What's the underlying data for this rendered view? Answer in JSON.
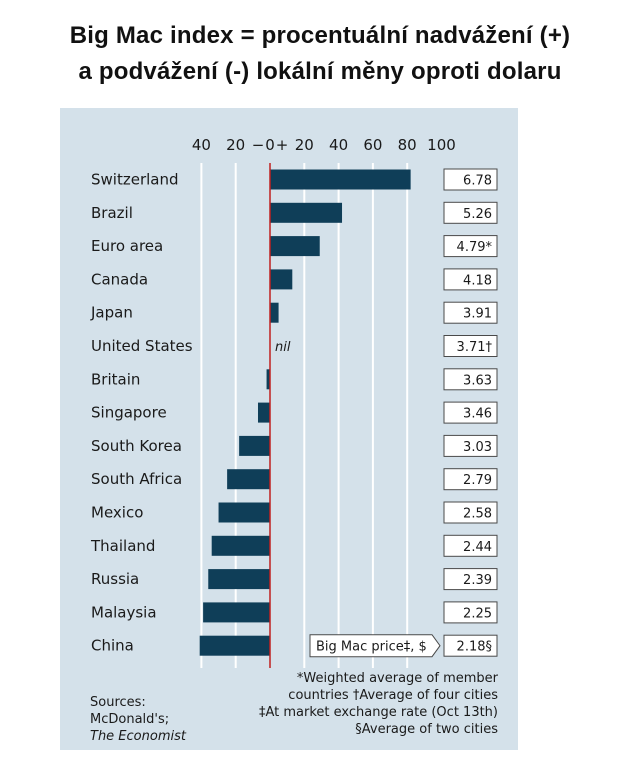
{
  "title_line1": "Big Mac index = procentuální nadvážení (+)",
  "title_line2": "a podvážení (-)  lokální měny oproti  dolaru",
  "chart_data": {
    "type": "bar",
    "orientation": "horizontal",
    "categories": [
      "Switzerland",
      "Brazil",
      "Euro area",
      "Canada",
      "Japan",
      "United States",
      "Britain",
      "Singapore",
      "South Korea",
      "South Africa",
      "Mexico",
      "Thailand",
      "Russia",
      "Malaysia",
      "China"
    ],
    "values": [
      82,
      42,
      29,
      13,
      5,
      0,
      -2,
      -7,
      -18,
      -25,
      -30,
      -34,
      -36,
      -39,
      -41
    ],
    "value_labels": [
      "6.78",
      "5.26",
      "4.79*",
      "4.18",
      "3.91",
      "3.71†",
      "3.63",
      "3.46",
      "3.03",
      "2.79",
      "2.58",
      "2.44",
      "2.39",
      "2.25",
      "2.18§"
    ],
    "nil_label": "nil",
    "nil_category": "United States",
    "xlim": [
      -45,
      103
    ],
    "xticks": [
      {
        "v": -40,
        "label": "40"
      },
      {
        "v": -20,
        "label": "20"
      },
      {
        "v": -7,
        "label": "−"
      },
      {
        "v": 0,
        "label": "0"
      },
      {
        "v": 7,
        "label": "+"
      },
      {
        "v": 20,
        "label": "20"
      },
      {
        "v": 40,
        "label": "40"
      },
      {
        "v": 60,
        "label": "60"
      },
      {
        "v": 80,
        "label": "80"
      },
      {
        "v": 100,
        "label": "100"
      }
    ],
    "gridlines": [
      -40,
      -20,
      20,
      40,
      60,
      80
    ],
    "price_callout": "Big Mac price‡, $",
    "grid": true
  },
  "colors": {
    "bar": "#0f3e58",
    "background": "#d4e1ea",
    "zero_line": "#c02020",
    "grid": "#ffffff"
  },
  "footer": {
    "sources": [
      "Sources:",
      "McDonald's;"
    ],
    "sources_italic": "The Economist",
    "notes": [
      "*Weighted average of member",
      "countries  †Average of four cities",
      "‡At market exchange rate (Oct 13th)",
      "§Average of two cities"
    ]
  }
}
